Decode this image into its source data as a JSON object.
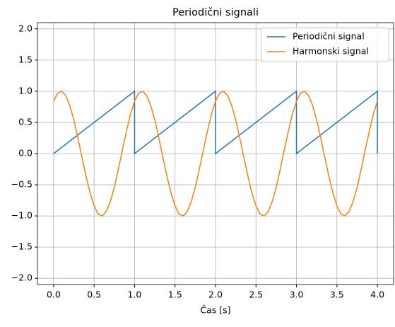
{
  "chart_data": {
    "type": "line",
    "title": "Periodični signali",
    "x_label": "Čas [s]",
    "xlim": [
      -0.2,
      4.2
    ],
    "ylim": [
      -2.1,
      2.1
    ],
    "xticks": [
      {
        "value": 0,
        "label": "0.0"
      },
      {
        "value": 0.5,
        "label": "0.5"
      },
      {
        "value": 1,
        "label": "1.0"
      },
      {
        "value": 1.5,
        "label": "1.5"
      },
      {
        "value": 2,
        "label": "2.0"
      },
      {
        "value": 2.5,
        "label": "2.5"
      },
      {
        "value": 3,
        "label": "3.0"
      },
      {
        "value": 3.5,
        "label": "3.5"
      },
      {
        "value": 4,
        "label": "4.0"
      }
    ],
    "yticks": [
      {
        "value": -2,
        "label": "−2.0"
      },
      {
        "value": -1.5,
        "label": "−1.5"
      },
      {
        "value": -1,
        "label": "−1.0"
      },
      {
        "value": -0.5,
        "label": "−0.5"
      },
      {
        "value": 0,
        "label": "0.0"
      },
      {
        "value": 0.5,
        "label": "0.5"
      },
      {
        "value": 1,
        "label": "1.0"
      },
      {
        "value": 1.5,
        "label": "1.5"
      },
      {
        "value": 2,
        "label": "2.0"
      }
    ],
    "grid": true,
    "legend": "upper right",
    "series": [
      {
        "name": "Periodični signal",
        "color": "#1f77b4",
        "x": [
          0,
          1,
          1,
          2,
          2,
          3,
          3,
          4,
          4
        ],
        "values": [
          0,
          1,
          0,
          1,
          0,
          1,
          0,
          1,
          0
        ]
      },
      {
        "name": "Harmonski signal",
        "color": "#ff7f0e",
        "x": [
          0,
          0.05,
          0.1,
          0.15,
          0.2,
          0.25,
          0.3,
          0.35,
          0.4,
          0.45,
          0.5,
          0.55,
          0.6,
          0.65,
          0.7,
          0.75,
          0.8,
          0.85,
          0.9,
          0.95,
          1,
          1.05,
          1.1,
          1.15,
          1.2,
          1.25,
          1.3,
          1.35,
          1.4,
          1.45,
          1.5,
          1.55,
          1.6,
          1.65,
          1.7,
          1.75,
          1.8,
          1.85,
          1.9,
          1.95,
          2,
          2.05,
          2.1,
          2.15,
          2.2,
          2.25,
          2.3,
          2.35,
          2.4,
          2.45,
          2.5,
          2.55,
          2.6,
          2.65,
          2.7,
          2.75,
          2.8,
          2.85,
          2.9,
          2.95,
          3,
          3.05,
          3.1,
          3.15,
          3.2,
          3.25,
          3.3,
          3.35,
          3.4,
          3.45,
          3.5,
          3.55,
          3.6,
          3.65,
          3.7,
          3.75,
          3.8,
          3.85,
          3.9,
          3.95,
          4
        ],
        "values": [
          0.84,
          0.97,
          1.0,
          0.93,
          0.77,
          0.54,
          0.25,
          -0.06,
          -0.36,
          -0.63,
          -0.84,
          -0.97,
          -1.0,
          -0.93,
          -0.77,
          -0.54,
          -0.25,
          0.06,
          0.36,
          0.63,
          0.84,
          0.97,
          1.0,
          0.93,
          0.77,
          0.54,
          0.25,
          -0.06,
          -0.36,
          -0.63,
          -0.84,
          -0.97,
          -1.0,
          -0.93,
          -0.77,
          -0.54,
          -0.25,
          0.06,
          0.36,
          0.63,
          0.84,
          0.97,
          1.0,
          0.93,
          0.77,
          0.54,
          0.25,
          -0.06,
          -0.36,
          -0.63,
          -0.84,
          -0.97,
          -1.0,
          -0.93,
          -0.77,
          -0.54,
          -0.25,
          0.06,
          0.36,
          0.63,
          0.84,
          0.97,
          1.0,
          0.93,
          0.77,
          0.54,
          0.25,
          -0.06,
          -0.36,
          -0.63,
          -0.84,
          -0.97,
          -1.0,
          -0.93,
          -0.77,
          -0.54,
          -0.25,
          0.06,
          0.36,
          0.63,
          0.84
        ]
      }
    ]
  }
}
